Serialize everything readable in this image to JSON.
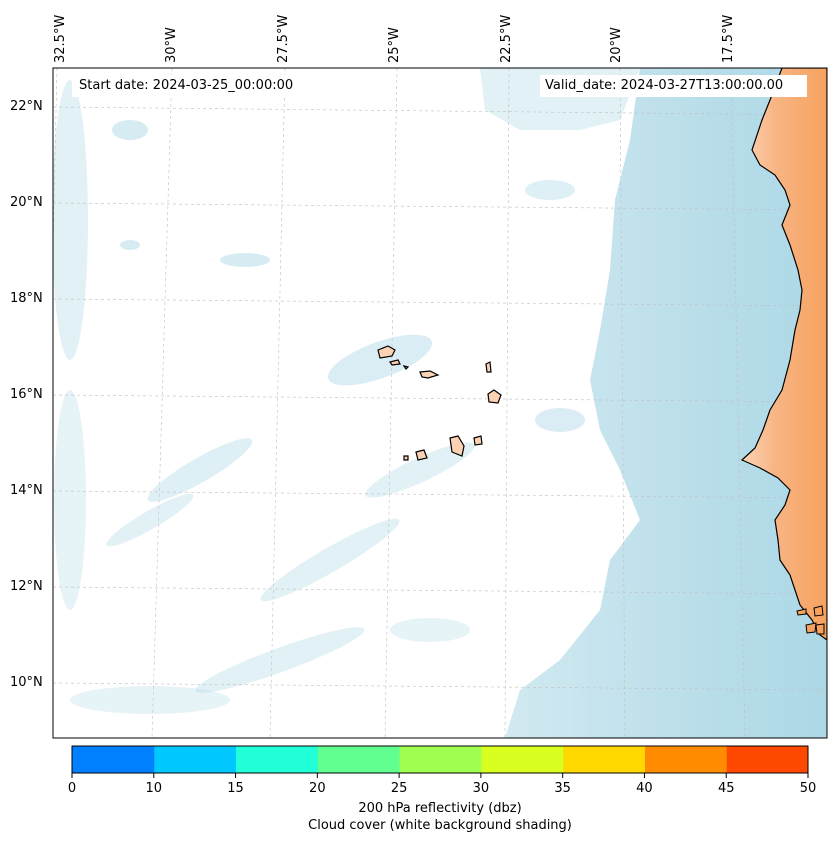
{
  "map": {
    "start_label": "Start date: 2024-03-25_00:00:00",
    "valid_label": "Valid_date: 2024-03-27T13:00:00.00",
    "lon_labels": [
      "32.5°W",
      "30°W",
      "27.5°W",
      "25°W",
      "22.5°W",
      "20°W",
      "17.5°W"
    ],
    "lat_labels": [
      "22°N",
      "20°N",
      "18°N",
      "16°N",
      "14°N",
      "12°N",
      "10°N"
    ],
    "colors": {
      "land": "#f6a25e",
      "cloud": "#add8e6",
      "coast": "#000000"
    }
  },
  "colorbar": {
    "ticks": [
      "0",
      "10",
      "15",
      "20",
      "25",
      "30",
      "35",
      "40",
      "45",
      "50"
    ],
    "colors": [
      "#0080ff",
      "#00c8ff",
      "#20ffd8",
      "#60ff90",
      "#a0ff50",
      "#d8ff20",
      "#ffd800",
      "#ff8c00",
      "#ff4800"
    ],
    "label_line1": "200 hPa reflectivity (dbz)",
    "label_line2": "Cloud cover (white background shading)"
  }
}
